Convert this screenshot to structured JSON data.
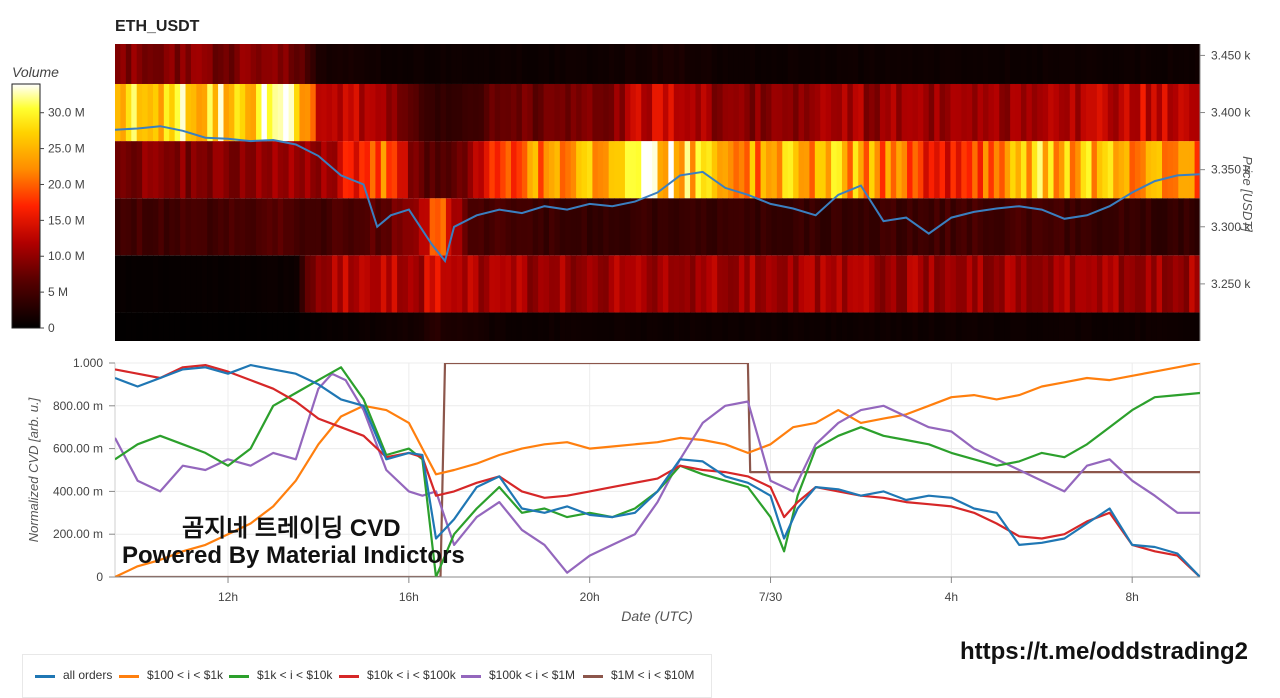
{
  "header": {
    "title": "ETH_USDT"
  },
  "colorbar": {
    "title": "Volume",
    "ticks": [
      {
        "value": 30,
        "label": "30.0 M"
      },
      {
        "value": 25,
        "label": "25.0 M"
      },
      {
        "value": 20,
        "label": "20.0 M"
      },
      {
        "value": 15,
        "label": "15.0 M"
      },
      {
        "value": 10,
        "label": "10.0 M"
      },
      {
        "value": 5,
        "label": "5 M"
      },
      {
        "value": 0,
        "label": "0"
      }
    ],
    "range": [
      0,
      34
    ]
  },
  "watermark": {
    "line1": "곰지네 트레이딩 CVD",
    "line2": "Powered By Material Indictors"
  },
  "footer": {
    "url": "https://t.me/oddstrading2"
  },
  "colors": {
    "all_orders": "#1f77b4",
    "s100": "#ff7f0e",
    "s1k": "#2ca02c",
    "s10k": "#d62728",
    "s100k": "#9467bd",
    "s1M": "#8c564b"
  },
  "chart_data": [
    {
      "type": "heatmap",
      "title": "ETH_USDT",
      "ylabel": "Price [USDT]",
      "yticks": [
        "3.450 k",
        "3.400 k",
        "3.350 k",
        "3.300 k",
        "3.250 k"
      ],
      "ytick_values": [
        3450,
        3400,
        3350,
        3300,
        3250
      ],
      "ylim": [
        3200,
        3460
      ],
      "xlim": [
        9.5,
        33.5
      ],
      "price_bands": [
        3200,
        3225,
        3275,
        3325,
        3375,
        3425,
        3460
      ],
      "volume_keyframes": [
        {
          "x": 9.5,
          "bands": [
            0.2,
            0.5,
            5,
            9,
            26,
            9
          ]
        },
        {
          "x": 11.0,
          "bands": [
            0.2,
            0.5,
            5,
            9,
            28,
            9
          ]
        },
        {
          "x": 13.5,
          "bands": [
            0.2,
            0.8,
            6,
            10,
            31,
            9
          ]
        },
        {
          "x": 14.0,
          "bands": [
            0.5,
            12,
            5,
            10,
            13,
            2
          ]
        },
        {
          "x": 15.5,
          "bands": [
            1,
            12,
            7,
            21,
            12,
            1
          ]
        },
        {
          "x": 16.3,
          "bands": [
            2,
            12,
            11,
            6,
            4,
            1
          ]
        },
        {
          "x": 16.6,
          "bands": [
            3,
            15,
            26,
            6,
            4,
            1
          ]
        },
        {
          "x": 17.2,
          "bands": [
            2,
            12,
            7,
            8,
            4,
            1
          ]
        },
        {
          "x": 18.0,
          "bands": [
            1,
            11,
            5,
            19,
            8,
            1
          ]
        },
        {
          "x": 20.0,
          "bands": [
            1,
            11,
            4,
            25,
            8,
            1
          ]
        },
        {
          "x": 21.8,
          "bands": [
            1,
            11,
            4,
            30,
            15,
            2
          ]
        },
        {
          "x": 23.0,
          "bands": [
            1,
            11,
            4,
            22,
            9,
            1
          ]
        },
        {
          "x": 25.5,
          "bands": [
            1,
            11,
            4,
            26,
            11,
            1
          ]
        },
        {
          "x": 28.0,
          "bands": [
            1,
            11,
            5,
            15,
            10,
            1
          ]
        },
        {
          "x": 29.8,
          "bands": [
            1,
            11,
            5,
            27,
            10,
            1
          ]
        },
        {
          "x": 32.0,
          "bands": [
            1,
            11,
            4,
            24,
            14,
            1
          ]
        },
        {
          "x": 33.5,
          "bands": [
            1,
            11,
            4,
            22,
            12,
            1
          ]
        }
      ],
      "price_series": {
        "x": [
          9.5,
          10.0,
          10.5,
          11.0,
          11.5,
          12.0,
          12.5,
          13.0,
          13.5,
          14.0,
          14.5,
          15.0,
          15.3,
          15.6,
          16.0,
          16.5,
          16.8,
          17.0,
          17.5,
          18.0,
          18.5,
          19.0,
          19.5,
          20.0,
          20.5,
          21.0,
          21.5,
          22.0,
          22.5,
          23.0,
          23.5,
          24.0,
          24.5,
          25.0,
          25.5,
          26.0,
          26.5,
          27.0,
          27.5,
          28.0,
          28.5,
          29.0,
          29.5,
          30.0,
          30.5,
          31.0,
          31.5,
          32.0,
          32.5,
          33.0,
          33.5
        ],
        "y": [
          3385,
          3386,
          3388,
          3384,
          3378,
          3377,
          3375,
          3376,
          3372,
          3362,
          3345,
          3337,
          3300,
          3310,
          3315,
          3285,
          3270,
          3300,
          3310,
          3315,
          3312,
          3318,
          3315,
          3320,
          3318,
          3322,
          3330,
          3345,
          3348,
          3334,
          3328,
          3320,
          3316,
          3310,
          3328,
          3336,
          3305,
          3308,
          3294,
          3308,
          3313,
          3316,
          3318,
          3315,
          3307,
          3310,
          3318,
          3330,
          3340,
          3345,
          3346
        ]
      },
      "grid": false
    },
    {
      "type": "line",
      "xlabel": "Date (UTC)",
      "ylabel": "Normalized CVD [arb. u.]",
      "xlim": [
        9.5,
        33.5
      ],
      "ylim": [
        0,
        1
      ],
      "xticks": [
        {
          "value": 12,
          "label": "12h"
        },
        {
          "value": 16,
          "label": "16h"
        },
        {
          "value": 20,
          "label": "20h"
        },
        {
          "value": 24,
          "label": "7/30"
        },
        {
          "value": 28,
          "label": "4h"
        },
        {
          "value": 32,
          "label": "8h"
        }
      ],
      "yticks": [
        {
          "value": 1.0,
          "label": "1.000"
        },
        {
          "value": 0.8,
          "label": "800.00 m"
        },
        {
          "value": 0.6,
          "label": "600.00 m"
        },
        {
          "value": 0.4,
          "label": "400.00 m"
        },
        {
          "value": 0.2,
          "label": "200.00 m"
        },
        {
          "value": 0.0,
          "label": "0"
        }
      ],
      "grid": true,
      "legend_position": "bottom-left",
      "series": [
        {
          "name": "all orders",
          "color_key": "all_orders",
          "x": [
            9.5,
            10.0,
            10.5,
            11.0,
            11.5,
            12.0,
            12.5,
            13.0,
            13.5,
            14.0,
            14.5,
            15.0,
            15.5,
            16.0,
            16.3,
            16.6,
            17.0,
            17.5,
            18.0,
            18.5,
            19.0,
            19.5,
            20.0,
            20.5,
            21.0,
            21.5,
            22.0,
            22.5,
            23.0,
            23.5,
            24.0,
            24.3,
            24.6,
            25.0,
            25.5,
            26.0,
            26.5,
            27.0,
            27.5,
            28.0,
            28.5,
            29.0,
            29.5,
            30.0,
            30.5,
            31.0,
            31.5,
            32.0,
            32.5,
            33.0,
            33.5
          ],
          "y": [
            0.93,
            0.89,
            0.93,
            0.97,
            0.98,
            0.95,
            0.99,
            0.97,
            0.95,
            0.9,
            0.83,
            0.8,
            0.55,
            0.58,
            0.57,
            0.18,
            0.27,
            0.42,
            0.47,
            0.32,
            0.3,
            0.33,
            0.29,
            0.28,
            0.3,
            0.4,
            0.55,
            0.54,
            0.47,
            0.44,
            0.38,
            0.18,
            0.32,
            0.42,
            0.41,
            0.38,
            0.4,
            0.36,
            0.38,
            0.37,
            0.32,
            0.3,
            0.15,
            0.16,
            0.18,
            0.25,
            0.32,
            0.15,
            0.14,
            0.11,
            0.0
          ]
        },
        {
          "name": "$100 < i < $1k",
          "color_key": "s100",
          "x": [
            9.5,
            10.0,
            10.5,
            11.0,
            11.5,
            12.0,
            12.5,
            13.0,
            13.5,
            14.0,
            14.5,
            15.0,
            15.5,
            16.0,
            16.3,
            16.6,
            17.0,
            17.5,
            18.0,
            18.5,
            19.0,
            19.5,
            20.0,
            20.5,
            21.0,
            21.5,
            22.0,
            22.5,
            23.0,
            23.5,
            24.0,
            24.5,
            25.0,
            25.5,
            26.0,
            26.5,
            27.0,
            27.5,
            28.0,
            28.5,
            29.0,
            29.5,
            30.0,
            30.5,
            31.0,
            31.5,
            32.0,
            32.5,
            33.0,
            33.5
          ],
          "y": [
            0.0,
            0.05,
            0.08,
            0.12,
            0.15,
            0.2,
            0.25,
            0.33,
            0.45,
            0.62,
            0.75,
            0.8,
            0.78,
            0.72,
            0.6,
            0.48,
            0.5,
            0.53,
            0.57,
            0.6,
            0.62,
            0.63,
            0.6,
            0.61,
            0.62,
            0.63,
            0.65,
            0.64,
            0.62,
            0.58,
            0.62,
            0.7,
            0.72,
            0.78,
            0.72,
            0.74,
            0.76,
            0.8,
            0.84,
            0.85,
            0.83,
            0.85,
            0.89,
            0.91,
            0.93,
            0.92,
            0.94,
            0.96,
            0.98,
            1.0
          ]
        },
        {
          "name": "$1k < i < $10k",
          "color_key": "s1k",
          "x": [
            9.5,
            10.0,
            10.5,
            11.0,
            11.5,
            12.0,
            12.5,
            13.0,
            13.5,
            14.0,
            14.5,
            15.0,
            15.5,
            16.0,
            16.3,
            16.6,
            17.0,
            17.5,
            18.0,
            18.5,
            19.0,
            19.5,
            20.0,
            20.5,
            21.0,
            21.5,
            22.0,
            22.5,
            23.0,
            23.5,
            24.0,
            24.3,
            24.6,
            25.0,
            25.5,
            26.0,
            26.5,
            27.0,
            27.5,
            28.0,
            28.5,
            29.0,
            29.5,
            30.0,
            30.5,
            31.0,
            31.5,
            32.0,
            32.5,
            33.0,
            33.5
          ],
          "y": [
            0.55,
            0.62,
            0.66,
            0.62,
            0.58,
            0.52,
            0.6,
            0.8,
            0.86,
            0.92,
            0.98,
            0.83,
            0.57,
            0.6,
            0.55,
            0.0,
            0.2,
            0.32,
            0.42,
            0.3,
            0.32,
            0.28,
            0.3,
            0.28,
            0.32,
            0.4,
            0.52,
            0.48,
            0.45,
            0.42,
            0.28,
            0.12,
            0.38,
            0.6,
            0.66,
            0.7,
            0.66,
            0.64,
            0.62,
            0.58,
            0.55,
            0.52,
            0.54,
            0.58,
            0.56,
            0.62,
            0.7,
            0.78,
            0.84,
            0.85,
            0.86
          ]
        },
        {
          "name": "$10k < i < $100k",
          "color_key": "s10k",
          "x": [
            9.5,
            10.0,
            10.5,
            11.0,
            11.5,
            12.0,
            12.5,
            13.0,
            13.5,
            14.0,
            14.5,
            15.0,
            15.5,
            16.0,
            16.3,
            16.6,
            17.0,
            17.5,
            18.0,
            18.5,
            19.0,
            19.5,
            20.0,
            20.5,
            21.0,
            21.5,
            22.0,
            22.5,
            23.0,
            23.5,
            24.0,
            24.3,
            24.6,
            25.0,
            25.5,
            26.0,
            26.5,
            27.0,
            27.5,
            28.0,
            28.5,
            29.0,
            29.5,
            30.0,
            30.5,
            31.0,
            31.5,
            32.0,
            32.5,
            33.0,
            33.5
          ],
          "y": [
            0.97,
            0.95,
            0.93,
            0.98,
            0.99,
            0.96,
            0.92,
            0.88,
            0.82,
            0.74,
            0.7,
            0.66,
            0.56,
            0.58,
            0.56,
            0.38,
            0.4,
            0.44,
            0.47,
            0.4,
            0.37,
            0.38,
            0.4,
            0.42,
            0.44,
            0.46,
            0.52,
            0.5,
            0.49,
            0.47,
            0.42,
            0.28,
            0.35,
            0.42,
            0.4,
            0.38,
            0.37,
            0.35,
            0.34,
            0.33,
            0.3,
            0.25,
            0.19,
            0.18,
            0.2,
            0.26,
            0.3,
            0.15,
            0.12,
            0.1,
            0.0
          ]
        },
        {
          "name": "$100k < i < $1M",
          "color_key": "s100k",
          "x": [
            9.5,
            10.0,
            10.5,
            11.0,
            11.5,
            12.0,
            12.5,
            13.0,
            13.5,
            14.0,
            14.3,
            14.6,
            15.0,
            15.5,
            16.0,
            16.3,
            16.6,
            17.0,
            17.5,
            18.0,
            18.5,
            19.0,
            19.5,
            20.0,
            20.5,
            21.0,
            21.5,
            22.0,
            22.5,
            23.0,
            23.5,
            24.0,
            24.5,
            25.0,
            25.5,
            26.0,
            26.5,
            27.0,
            27.5,
            28.0,
            28.5,
            29.0,
            29.5,
            30.0,
            30.5,
            31.0,
            31.5,
            32.0,
            32.5,
            33.0,
            33.5
          ],
          "y": [
            0.65,
            0.45,
            0.4,
            0.52,
            0.5,
            0.55,
            0.52,
            0.58,
            0.55,
            0.88,
            0.95,
            0.92,
            0.78,
            0.5,
            0.4,
            0.38,
            0.4,
            0.15,
            0.28,
            0.35,
            0.22,
            0.15,
            0.02,
            0.1,
            0.15,
            0.2,
            0.35,
            0.55,
            0.72,
            0.8,
            0.82,
            0.45,
            0.4,
            0.62,
            0.72,
            0.78,
            0.8,
            0.75,
            0.7,
            0.68,
            0.6,
            0.55,
            0.5,
            0.45,
            0.4,
            0.52,
            0.55,
            0.45,
            0.38,
            0.3,
            0.3
          ]
        },
        {
          "name": "$1M < i < $10M",
          "color_key": "s1M",
          "x": [
            9.5,
            16.7,
            16.8,
            23.5,
            23.55,
            33.5
          ],
          "y": [
            0.0,
            0.0,
            1.0,
            1.0,
            0.49,
            0.49
          ]
        }
      ]
    }
  ]
}
